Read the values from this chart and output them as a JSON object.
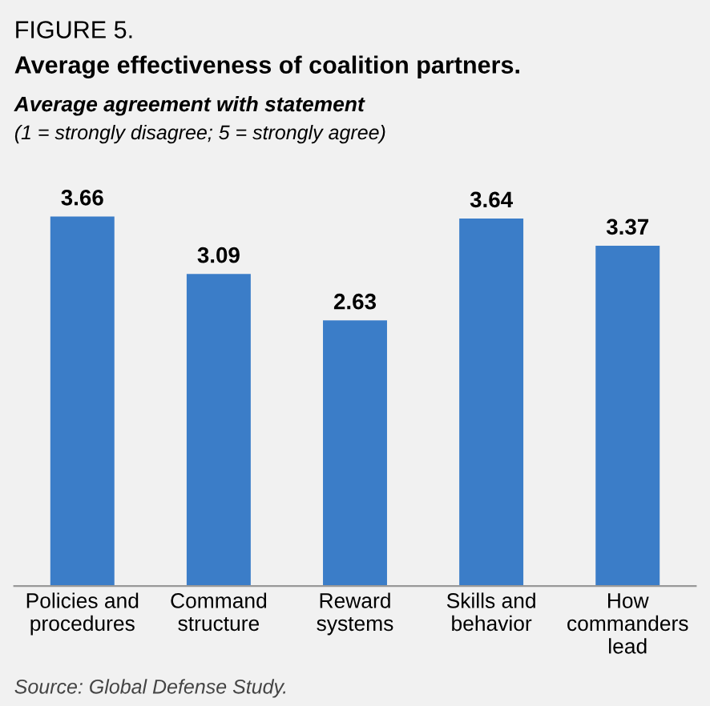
{
  "chart_data": {
    "type": "bar",
    "title": "Average effectiveness of coalition partners.",
    "subtitle": "Average agreement with statement",
    "annotations": [
      "FIGURE 5.",
      "(1 = strongly disagree; 5 = strongly agree)",
      "Source: Global Defense Study."
    ],
    "categories": [
      "Policies and\nprocedures",
      "Command\nstructure",
      "Reward\nsystems",
      "Skills and\nbehavior",
      "How\ncommanders\nlead"
    ],
    "values": [
      3.66,
      3.09,
      2.63,
      3.64,
      3.37
    ],
    "color": "#3b7dc8",
    "data_labels": true
  }
}
